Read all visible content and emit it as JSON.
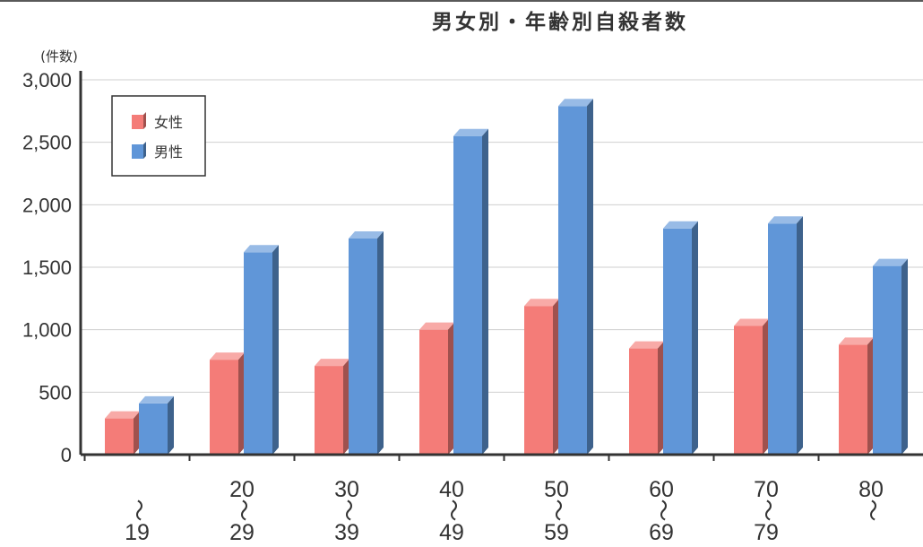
{
  "chart_data": {
    "type": "bar",
    "title": "男女別・年齢別自殺者数",
    "ylabel": "(件数)",
    "xlabel": "",
    "ylim": [
      0,
      3000
    ],
    "yticks": [
      "0",
      "500",
      "1,000",
      "1,500",
      "2,000",
      "2,500",
      "3,000"
    ],
    "categories": [
      {
        "top": "",
        "mid": "〜",
        "bottom": "19"
      },
      {
        "top": "20",
        "mid": "〜",
        "bottom": "29"
      },
      {
        "top": "30",
        "mid": "〜",
        "bottom": "39"
      },
      {
        "top": "40",
        "mid": "〜",
        "bottom": "49"
      },
      {
        "top": "50",
        "mid": "〜",
        "bottom": "59"
      },
      {
        "top": "60",
        "mid": "〜",
        "bottom": "69"
      },
      {
        "top": "70",
        "mid": "〜",
        "bottom": "79"
      },
      {
        "top": "80",
        "mid": "〜",
        "bottom": ""
      }
    ],
    "series": [
      {
        "name": "女性",
        "color": "#f47c78",
        "values": [
          290,
          760,
          710,
          1000,
          1190,
          850,
          1030,
          880
        ]
      },
      {
        "name": "男性",
        "color": "#6096d8",
        "values": [
          410,
          1620,
          1730,
          2550,
          2790,
          1810,
          1850,
          1510
        ]
      }
    ],
    "grid": true,
    "legend": "top-left"
  }
}
